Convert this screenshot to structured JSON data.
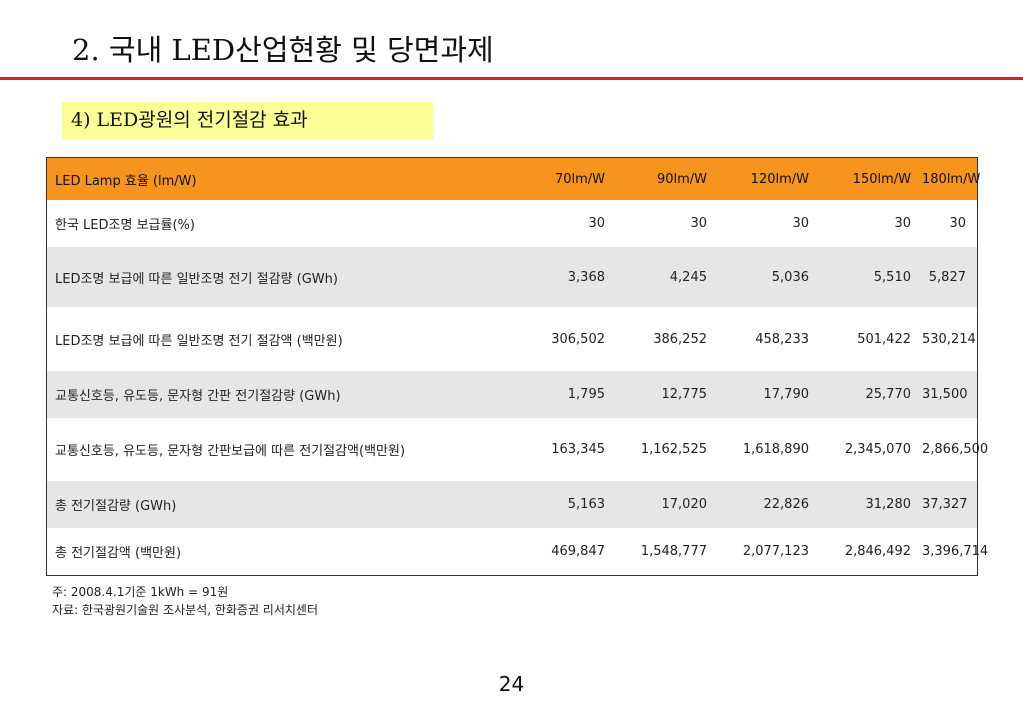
{
  "header": {
    "title": "2. 국내 LED산업현황 및 당면과제",
    "subtitle": "4) LED광원의 전기절감 효과"
  },
  "table": {
    "columns": [
      "LED Lamp 효율 (lm/W)",
      "70lm/W",
      "90lm/W",
      "120lm/W",
      "150lm/W",
      "180lm/W"
    ],
    "rows": [
      {
        "label": "한국 LED조명 보급률(%)",
        "values": [
          "30",
          "30",
          "30",
          "30",
          "30"
        ]
      },
      {
        "label": "LED조명 보급에 따른 일반조명 전기 절감량 (GWh)",
        "values": [
          "3,368",
          "4,245",
          "5,036",
          "5,510",
          "5,827"
        ]
      },
      {
        "label": "LED조명 보급에 따른 일반조명 전기 절감액 (백만원)",
        "values": [
          "306,502",
          "386,252",
          "458,233",
          "501,422",
          "530,214"
        ]
      },
      {
        "label": "교통신호등, 유도등, 문자형 간판 전기절감량 (GWh)",
        "values": [
          "1,795",
          "12,775",
          "17,790",
          "25,770",
          "31,500"
        ]
      },
      {
        "label": "교통신호등, 유도등, 문자형 간판보급에 따른 전기절감액(백만원)",
        "values": [
          "163,345",
          "1,162,525",
          "1,618,890",
          "2,345,070",
          "2,866,500"
        ]
      },
      {
        "label": "총 전기절감량 (GWh)",
        "values": [
          "5,163",
          "17,020",
          "22,826",
          "31,280",
          "37,327"
        ]
      },
      {
        "label": "총 전기절감액 (백만원)",
        "values": [
          "469,847",
          "1,548,777",
          "2,077,123",
          "2,846,492",
          "3,396,714"
        ]
      }
    ]
  },
  "notes": {
    "note": "주: 2008.4.1기준 1kWh = 91원",
    "source": "자료: 한국광원기술원 조사분석, 한화증권 리서치센터"
  },
  "page_number": "24",
  "colors": {
    "rule": "#d91e1e",
    "subtitle_bg": "#ffff99",
    "header_row_bg": "#f7941d",
    "alt_row_bg": "#e6e6e6"
  }
}
